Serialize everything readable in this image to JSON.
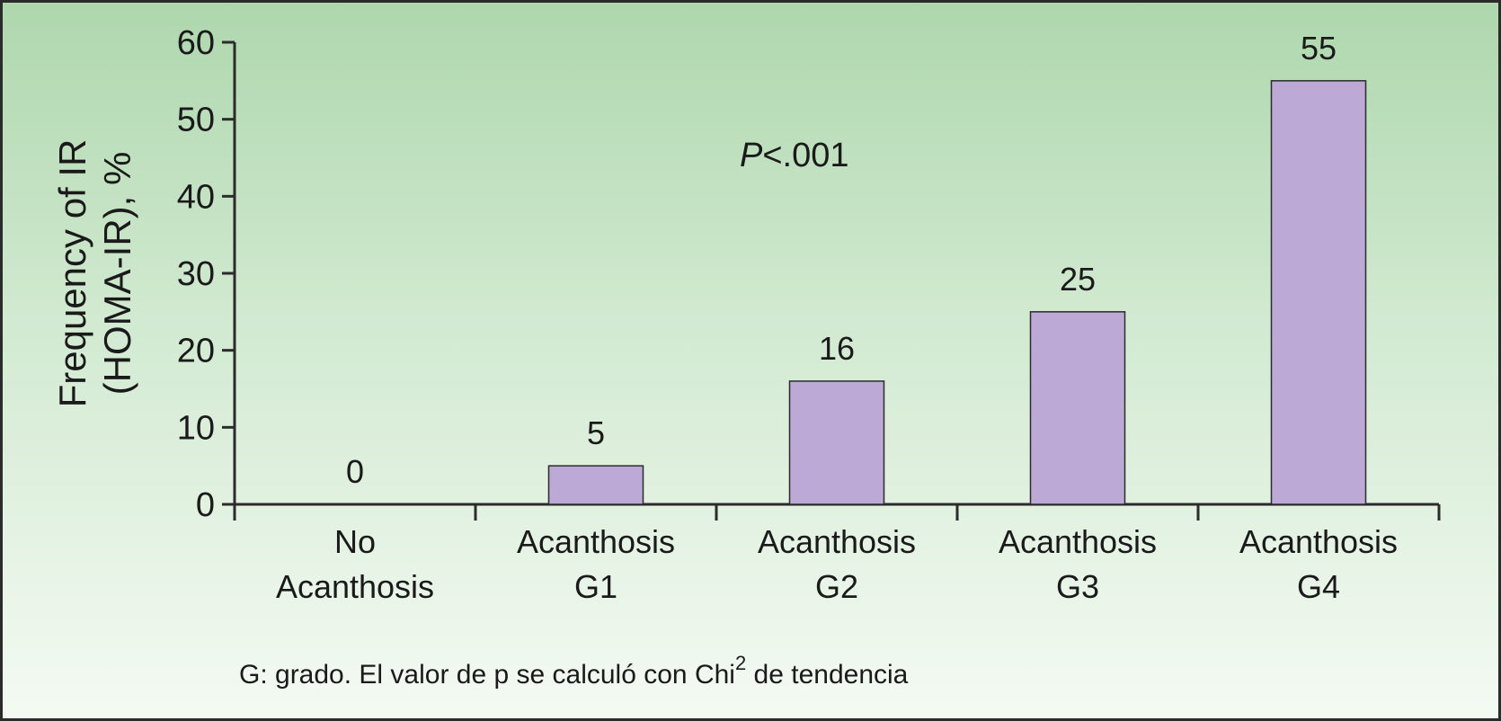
{
  "chart_data": {
    "type": "bar",
    "categories": [
      [
        "No",
        "Acanthosis"
      ],
      [
        "Acanthosis",
        "G1"
      ],
      [
        "Acanthosis",
        "G2"
      ],
      [
        "Acanthosis",
        "G3"
      ],
      [
        "Acanthosis",
        "G4"
      ]
    ],
    "values": [
      0,
      5,
      16,
      25,
      55
    ],
    "data_labels": [
      "0",
      "5",
      "16",
      "25",
      "55"
    ],
    "ylabel": [
      "Frequency of IR",
      "(HOMA-IR), %"
    ],
    "xlabel": "",
    "ylim": [
      0,
      60
    ],
    "yticks": [
      0,
      10,
      20,
      30,
      40,
      50,
      60
    ],
    "annotation": {
      "italic": "P",
      "rest": "<.001"
    },
    "grid": false,
    "bar_color": "#bca9d6",
    "bar_edge_color": "#2b2b2b"
  },
  "footnote": {
    "text": "G: grado. El valor de p se calculó con Chi",
    "superscript": "2",
    "suffix": " de tendencia"
  }
}
